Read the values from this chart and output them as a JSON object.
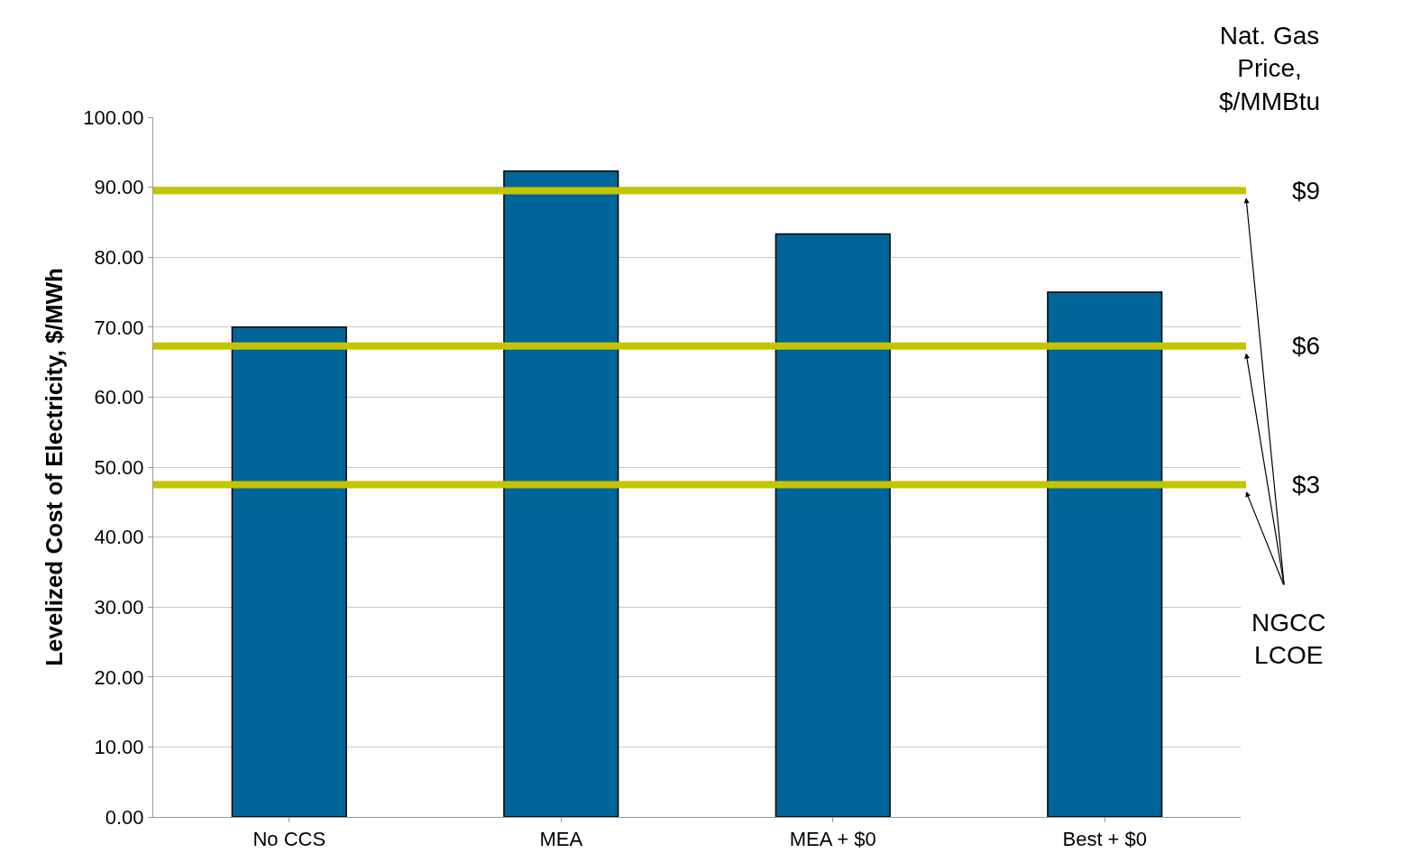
{
  "chart_data": {
    "type": "bar",
    "ylabel": "Levelized Cost of Electricity, $/MWh",
    "categories": [
      "No CCS",
      "MEA",
      "MEA + $0",
      "Best + $0"
    ],
    "series": [
      {
        "color": "#006699",
        "values": [
          70,
          92.3,
          83.3,
          75
        ]
      }
    ],
    "ylim": [
      0,
      100
    ],
    "yticks": [
      {
        "value": 0,
        "label": "0.00"
      },
      {
        "value": 10,
        "label": "10.00"
      },
      {
        "value": 20,
        "label": "20.00"
      },
      {
        "value": 30,
        "label": "30.00"
      },
      {
        "value": 40,
        "label": "40.00"
      },
      {
        "value": 50,
        "label": "50.00"
      },
      {
        "value": 60,
        "label": "60.00"
      },
      {
        "value": 70,
        "label": "70.00"
      },
      {
        "value": 80,
        "label": "80.00"
      },
      {
        "value": 90,
        "label": "90.00"
      },
      {
        "value": 100,
        "label": "100.00"
      }
    ],
    "grid": "y",
    "ref_lines": [
      {
        "axis": "y",
        "value": 89.5,
        "color": "#c4c400"
      },
      {
        "axis": "y",
        "value": 67.3,
        "color": "#c4c400"
      },
      {
        "axis": "y",
        "value": 47.5,
        "color": "#c4c400"
      }
    ],
    "annotations": [
      "Nat. Gas\nPrice,\n$/MMBtu",
      "NGCC\nLCOE",
      "$9",
      "$6",
      "$3"
    ]
  }
}
